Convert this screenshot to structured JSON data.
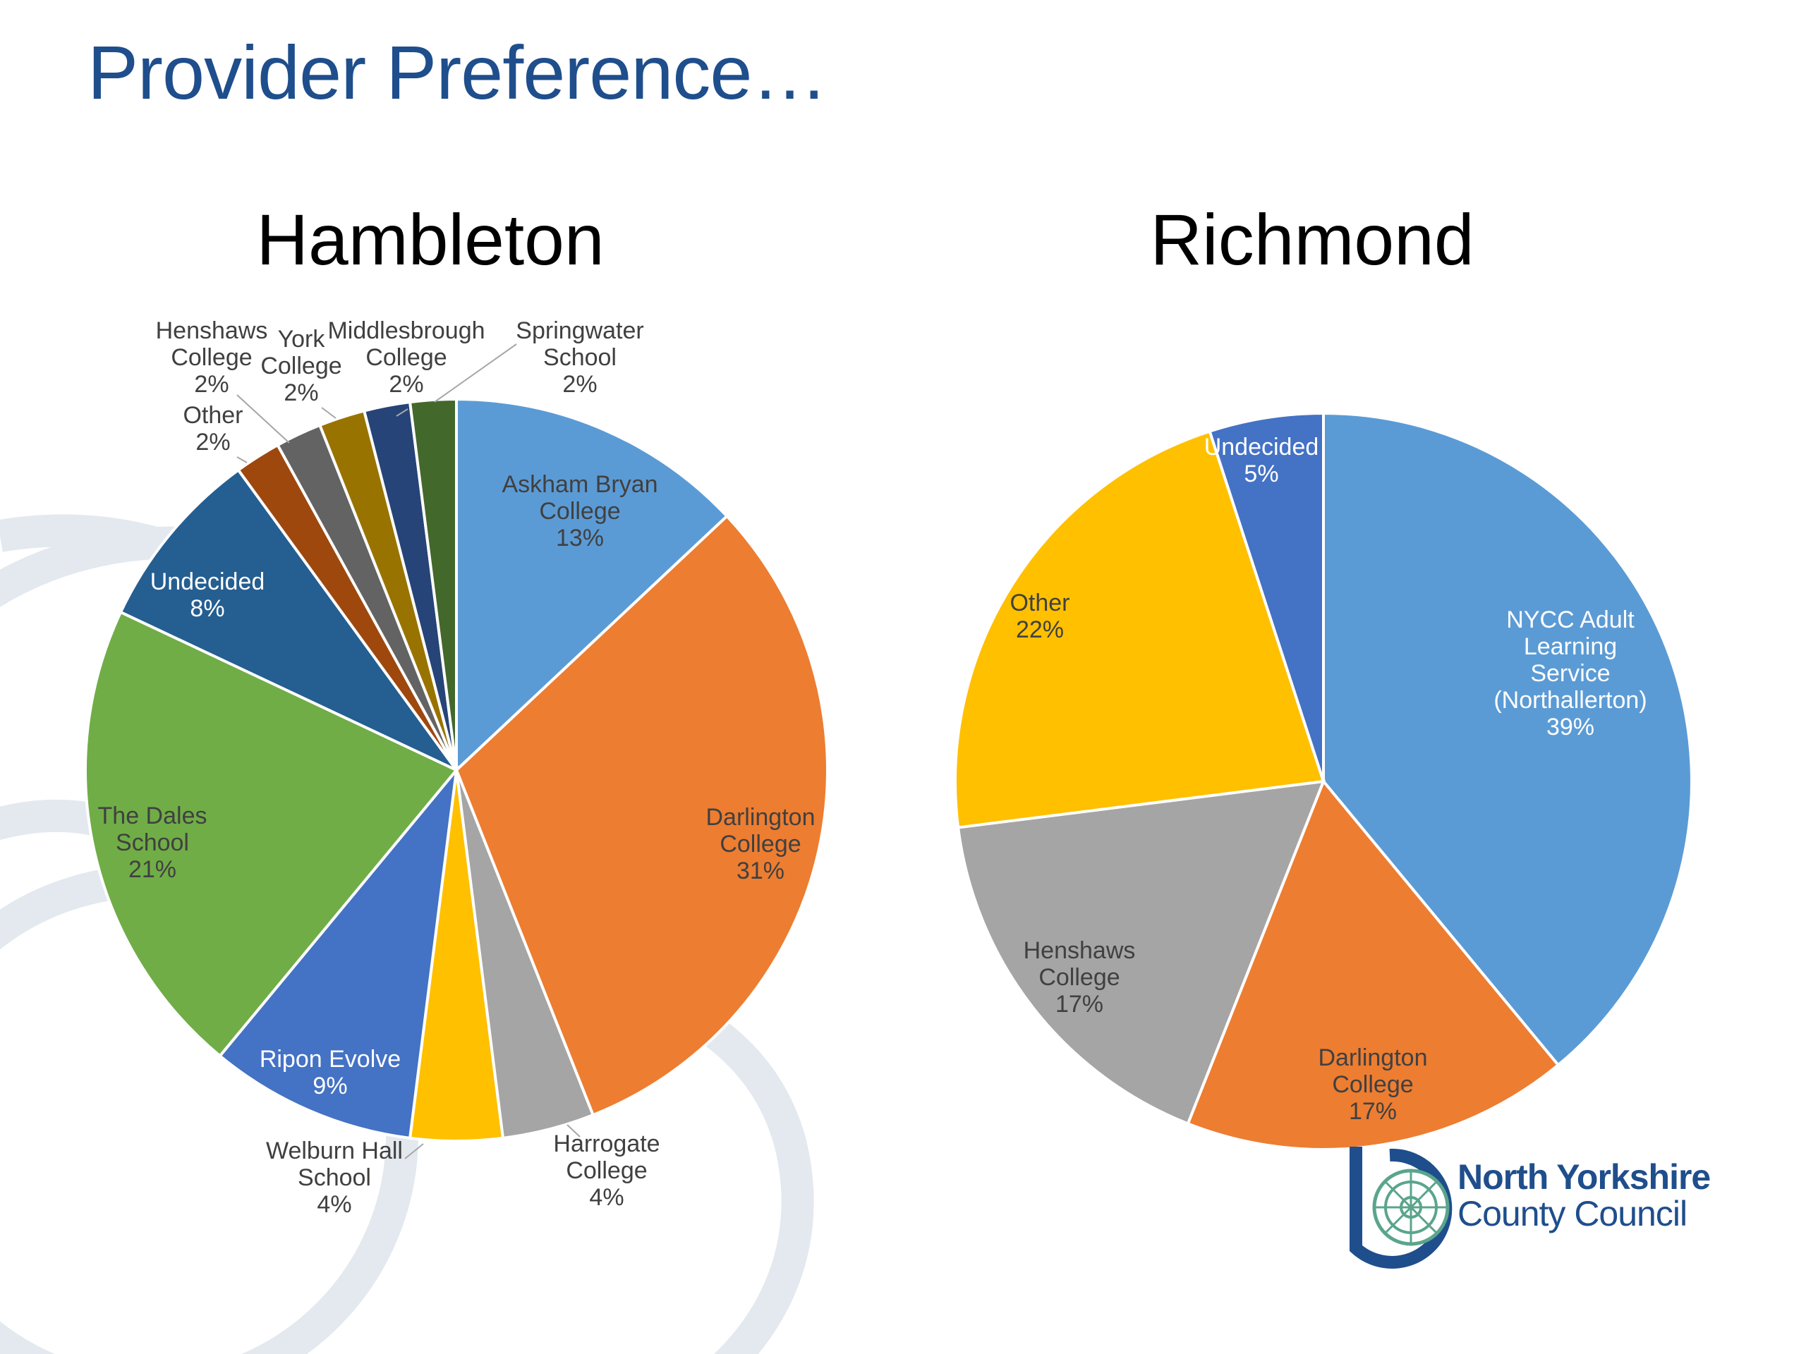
{
  "slide": {
    "title": "Provider Preference…"
  },
  "logo": {
    "line1": "North Yorkshire",
    "line2": "County Council"
  },
  "chart_data": [
    {
      "type": "pie",
      "title": "Hambleton",
      "slices": [
        {
          "label": "Askham Bryan College",
          "lines": [
            "Askham Bryan",
            "College"
          ],
          "pct": "13%",
          "value": 13,
          "color": "#5b9bd5"
        },
        {
          "label": "Darlington College",
          "lines": [
            "Darlington",
            "College"
          ],
          "pct": "31%",
          "value": 31,
          "color": "#ed7d31"
        },
        {
          "label": "Harrogate College",
          "lines": [
            "Harrogate",
            "College"
          ],
          "pct": "4%",
          "value": 4,
          "color": "#a5a5a5"
        },
        {
          "label": "Welburn Hall School",
          "lines": [
            "Welburn Hall",
            "School"
          ],
          "pct": "4%",
          "value": 4,
          "color": "#ffc000"
        },
        {
          "label": "Ripon Evolve",
          "lines": [
            "Ripon Evolve"
          ],
          "pct": "9%",
          "value": 9,
          "color": "#4472c4"
        },
        {
          "label": "The Dales School",
          "lines": [
            "The Dales",
            "School"
          ],
          "pct": "21%",
          "value": 21,
          "color": "#70ad47"
        },
        {
          "label": "Undecided",
          "lines": [
            "Undecided"
          ],
          "pct": "8%",
          "value": 8,
          "color": "#255e91"
        },
        {
          "label": "Other",
          "lines": [
            "Other"
          ],
          "pct": "2%",
          "value": 2,
          "color": "#9e480e"
        },
        {
          "label": "Henshaws College",
          "lines": [
            "Henshaws",
            "College"
          ],
          "pct": "2%",
          "value": 2,
          "color": "#636363"
        },
        {
          "label": "York College",
          "lines": [
            "York",
            "College"
          ],
          "pct": "2%",
          "value": 2,
          "color": "#997300"
        },
        {
          "label": "Middlesbrough College",
          "lines": [
            "Middlesbrough",
            "College"
          ],
          "pct": "2%",
          "value": 2,
          "color": "#264478"
        },
        {
          "label": "Springwater School",
          "lines": [
            "Springwater",
            "School"
          ],
          "pct": "2%",
          "value": 2,
          "color": "#43682b"
        }
      ]
    },
    {
      "type": "pie",
      "title": "Richmond",
      "slices": [
        {
          "label": "NYCC Adult Learning Service (Northallerton)",
          "lines": [
            "NYCC Adult",
            "Learning",
            "Service",
            "(Northallerton)"
          ],
          "pct": "39%",
          "value": 39,
          "color": "#5b9bd5"
        },
        {
          "label": "Darlington College",
          "lines": [
            "Darlington",
            "College"
          ],
          "pct": "17%",
          "value": 17,
          "color": "#ed7d31"
        },
        {
          "label": "Henshaws College",
          "lines": [
            "Henshaws",
            "College"
          ],
          "pct": "17%",
          "value": 17,
          "color": "#a5a5a5"
        },
        {
          "label": "Other",
          "lines": [
            "Other"
          ],
          "pct": "22%",
          "value": 22,
          "color": "#ffc000"
        },
        {
          "label": "Undecided",
          "lines": [
            "Undecided"
          ],
          "pct": "5%",
          "value": 5,
          "color": "#4472c4"
        }
      ]
    }
  ]
}
